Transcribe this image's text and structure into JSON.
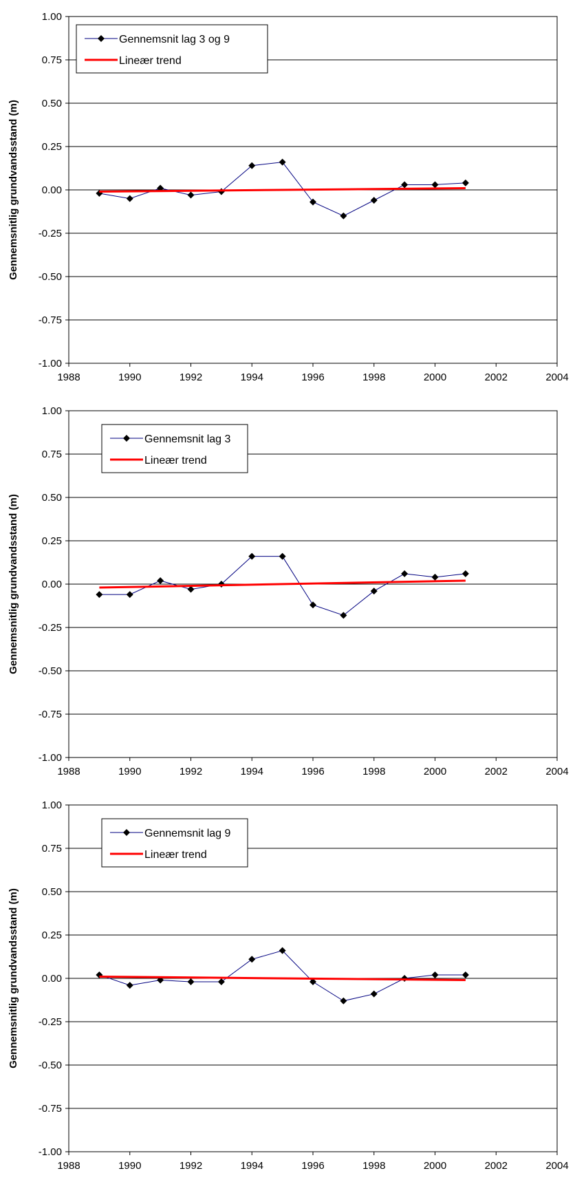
{
  "colors": {
    "series": "#000080",
    "marker": "#000000",
    "trend": "#ff0000",
    "grid": "#000000"
  },
  "chart_data": [
    {
      "type": "line",
      "ylabel": "Gennemsnitlig grundvandsstand (m)",
      "xlim": [
        1988,
        2004
      ],
      "ylim": [
        -1.0,
        1.0
      ],
      "xticks": [
        "1988",
        "1990",
        "1992",
        "1994",
        "1996",
        "1998",
        "2000",
        "2002",
        "2004"
      ],
      "yticks": [
        "1.00",
        "0.75",
        "0.50",
        "0.25",
        "0.00",
        "-0.25",
        "-0.50",
        "-0.75",
        "-1.00"
      ],
      "grid": true,
      "legend_position": "top-left",
      "x": [
        1989,
        1990,
        1991,
        1992,
        1993,
        1994,
        1995,
        1996,
        1997,
        1998,
        1999,
        2000,
        2001
      ],
      "series": [
        {
          "name": "Gennemsnit lag 3 og 9",
          "marker": "diamond",
          "values": [
            -0.02,
            -0.05,
            0.01,
            -0.03,
            -0.01,
            0.14,
            0.16,
            -0.07,
            -0.15,
            -0.06,
            0.03,
            0.03,
            0.04
          ]
        },
        {
          "name": "Lineær trend",
          "kind": "trend",
          "x": [
            1989,
            2001
          ],
          "values": [
            -0.01,
            0.01
          ]
        }
      ]
    },
    {
      "type": "line",
      "ylabel": "Gennemsnitlig grundvandsstand (m)",
      "xlim": [
        1988,
        2004
      ],
      "ylim": [
        -1.0,
        1.0
      ],
      "xticks": [
        "1988",
        "1990",
        "1992",
        "1994",
        "1996",
        "1998",
        "2000",
        "2002",
        "2004"
      ],
      "yticks": [
        "1.00",
        "0.75",
        "0.50",
        "0.25",
        "0.00",
        "-0.25",
        "-0.50",
        "-0.75",
        "-1.00"
      ],
      "grid": true,
      "legend_position": "top-left",
      "x": [
        1989,
        1990,
        1991,
        1992,
        1993,
        1994,
        1995,
        1996,
        1997,
        1998,
        1999,
        2000,
        2001
      ],
      "series": [
        {
          "name": "Gennemsnit lag 3",
          "marker": "diamond",
          "values": [
            -0.06,
            -0.06,
            0.02,
            -0.03,
            0.0,
            0.16,
            0.16,
            -0.12,
            -0.18,
            -0.04,
            0.06,
            0.04,
            0.06
          ]
        },
        {
          "name": "Lineær trend",
          "kind": "trend",
          "x": [
            1989,
            2001
          ],
          "values": [
            -0.02,
            0.02
          ]
        }
      ]
    },
    {
      "type": "line",
      "ylabel": "Gennemsnitlig grundvandsstand (m)",
      "xlim": [
        1988,
        2004
      ],
      "ylim": [
        -1.0,
        1.0
      ],
      "xticks": [
        "1988",
        "1990",
        "1992",
        "1994",
        "1996",
        "1998",
        "2000",
        "2002",
        "2004"
      ],
      "yticks": [
        "1.00",
        "0.75",
        "0.50",
        "0.25",
        "0.00",
        "-0.25",
        "-0.50",
        "-0.75",
        "-1.00"
      ],
      "grid": true,
      "legend_position": "top-left",
      "x": [
        1989,
        1990,
        1991,
        1992,
        1993,
        1994,
        1995,
        1996,
        1997,
        1998,
        1999,
        2000,
        2001
      ],
      "series": [
        {
          "name": "Gennemsnit lag 9",
          "marker": "diamond",
          "values": [
            0.02,
            -0.04,
            -0.01,
            -0.02,
            -0.02,
            0.11,
            0.16,
            -0.02,
            -0.13,
            -0.09,
            0.0,
            0.02,
            0.02
          ]
        },
        {
          "name": "Lineær trend",
          "kind": "trend",
          "x": [
            1989,
            2001
          ],
          "values": [
            0.01,
            -0.01
          ]
        }
      ]
    }
  ]
}
